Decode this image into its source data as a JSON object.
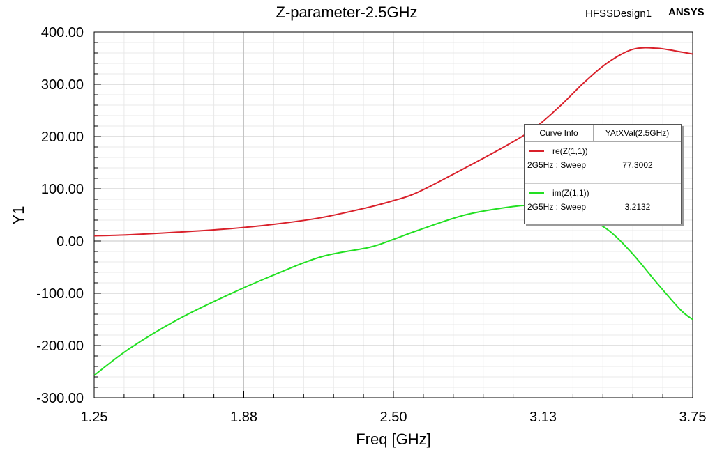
{
  "header": {
    "title": "Z-parameter-2.5GHz",
    "design_name": "HFSSDesign1",
    "brand": "ANSYS"
  },
  "chart_data": {
    "type": "line",
    "title": "Z-parameter-2.5GHz",
    "xlabel": "Freq [GHz]",
    "ylabel": "Y1",
    "xlim": [
      1.25,
      3.75
    ],
    "ylim": [
      -300,
      400
    ],
    "x_ticks": [
      1.25,
      1.875,
      2.5,
      3.125,
      3.75
    ],
    "x_tick_labels": [
      "1.25",
      "1.88",
      "2.50",
      "3.13",
      "3.75"
    ],
    "y_ticks": [
      400,
      300,
      200,
      100,
      0,
      -100,
      -200,
      -300
    ],
    "y_tick_labels": [
      "400.00",
      "300.00",
      "200.00",
      "100.00",
      "0.00",
      "-100.00",
      "-200.00",
      "-300.00"
    ],
    "grid": true,
    "legend_position": "right",
    "series": [
      {
        "name": "re(Z(1,1))",
        "color": "#d9202a",
        "x": [
          1.25,
          1.4,
          1.6,
          1.8,
          2.0,
          2.2,
          2.4,
          2.5,
          2.6,
          2.8,
          3.0,
          3.1,
          3.2,
          3.3,
          3.4,
          3.5,
          3.6,
          3.7,
          3.75
        ],
        "y": [
          10,
          12,
          17,
          23,
          32,
          45,
          65,
          77.3,
          93,
          140,
          190,
          220,
          260,
          305,
          343,
          367,
          369,
          362,
          358
        ]
      },
      {
        "name": "im(Z(1,1))",
        "color": "#22e022",
        "x": [
          1.25,
          1.4,
          1.6,
          1.8,
          2.0,
          2.2,
          2.4,
          2.5,
          2.6,
          2.8,
          3.0,
          3.1,
          3.2,
          3.3,
          3.4,
          3.5,
          3.6,
          3.7,
          3.75
        ],
        "y": [
          -257,
          -205,
          -150,
          -105,
          -65,
          -30,
          -12,
          3.2,
          20,
          50,
          66,
          68,
          62,
          45,
          20,
          -25,
          -80,
          -132,
          -150
        ]
      }
    ]
  },
  "legend": {
    "col_curve": "Curve Info",
    "col_value": "YAtXVal(2.5GHz)",
    "entries": [
      {
        "name": "re(Z(1,1))",
        "sweep": "2G5Hz : Sweep",
        "value": "77.3002",
        "color": "#d9202a"
      },
      {
        "name": "im(Z(1,1))",
        "sweep": "2G5Hz : Sweep",
        "value": "3.2132",
        "color": "#22e022"
      }
    ]
  }
}
